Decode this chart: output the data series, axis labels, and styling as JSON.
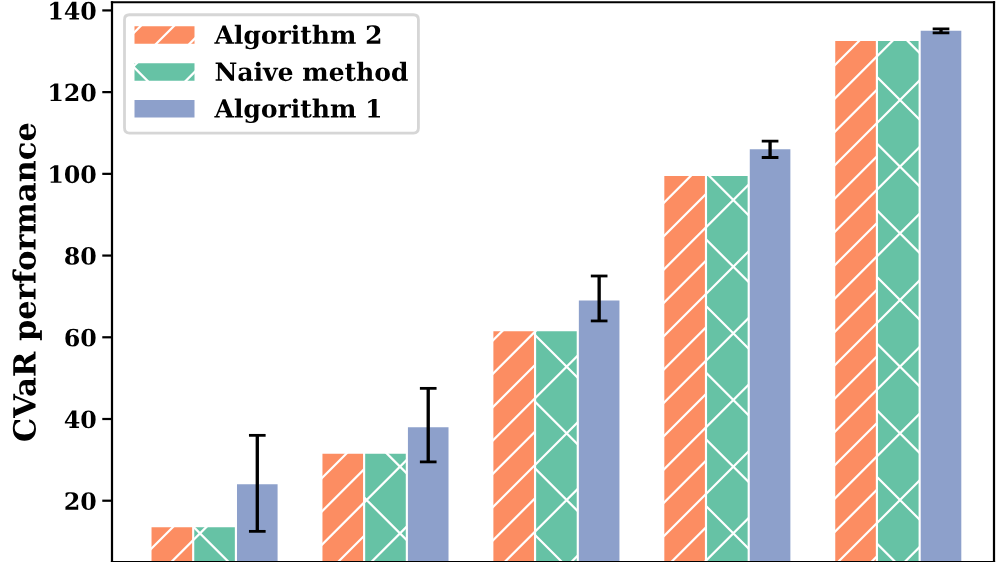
{
  "chart_data": {
    "type": "bar",
    "ylabel": "CVaR performance",
    "categories": [
      null,
      null,
      null,
      null,
      null
    ],
    "series": [
      {
        "name": "Algorithm 2",
        "color": "#fc8d62",
        "values": [
          13.5,
          31.5,
          61.5,
          99.5,
          132.5
        ]
      },
      {
        "name": "Naive method",
        "color": "#66c2a5",
        "values": [
          13.5,
          31.5,
          61.5,
          99.5,
          132.5
        ]
      },
      {
        "name": "Algorithm 1",
        "color": "#8da0cb",
        "values": [
          24,
          38,
          69,
          106,
          135
        ],
        "errors": [
          [
            12.5,
            36
          ],
          [
            29.5,
            47.5
          ],
          [
            64,
            75
          ],
          [
            104,
            108
          ],
          [
            134.5,
            135.5
          ]
        ]
      }
    ],
    "ylim": [
      5,
      142
    ],
    "yticks": [
      20,
      40,
      60,
      80,
      100,
      120,
      140
    ],
    "grid": false,
    "legend": "top left"
  }
}
